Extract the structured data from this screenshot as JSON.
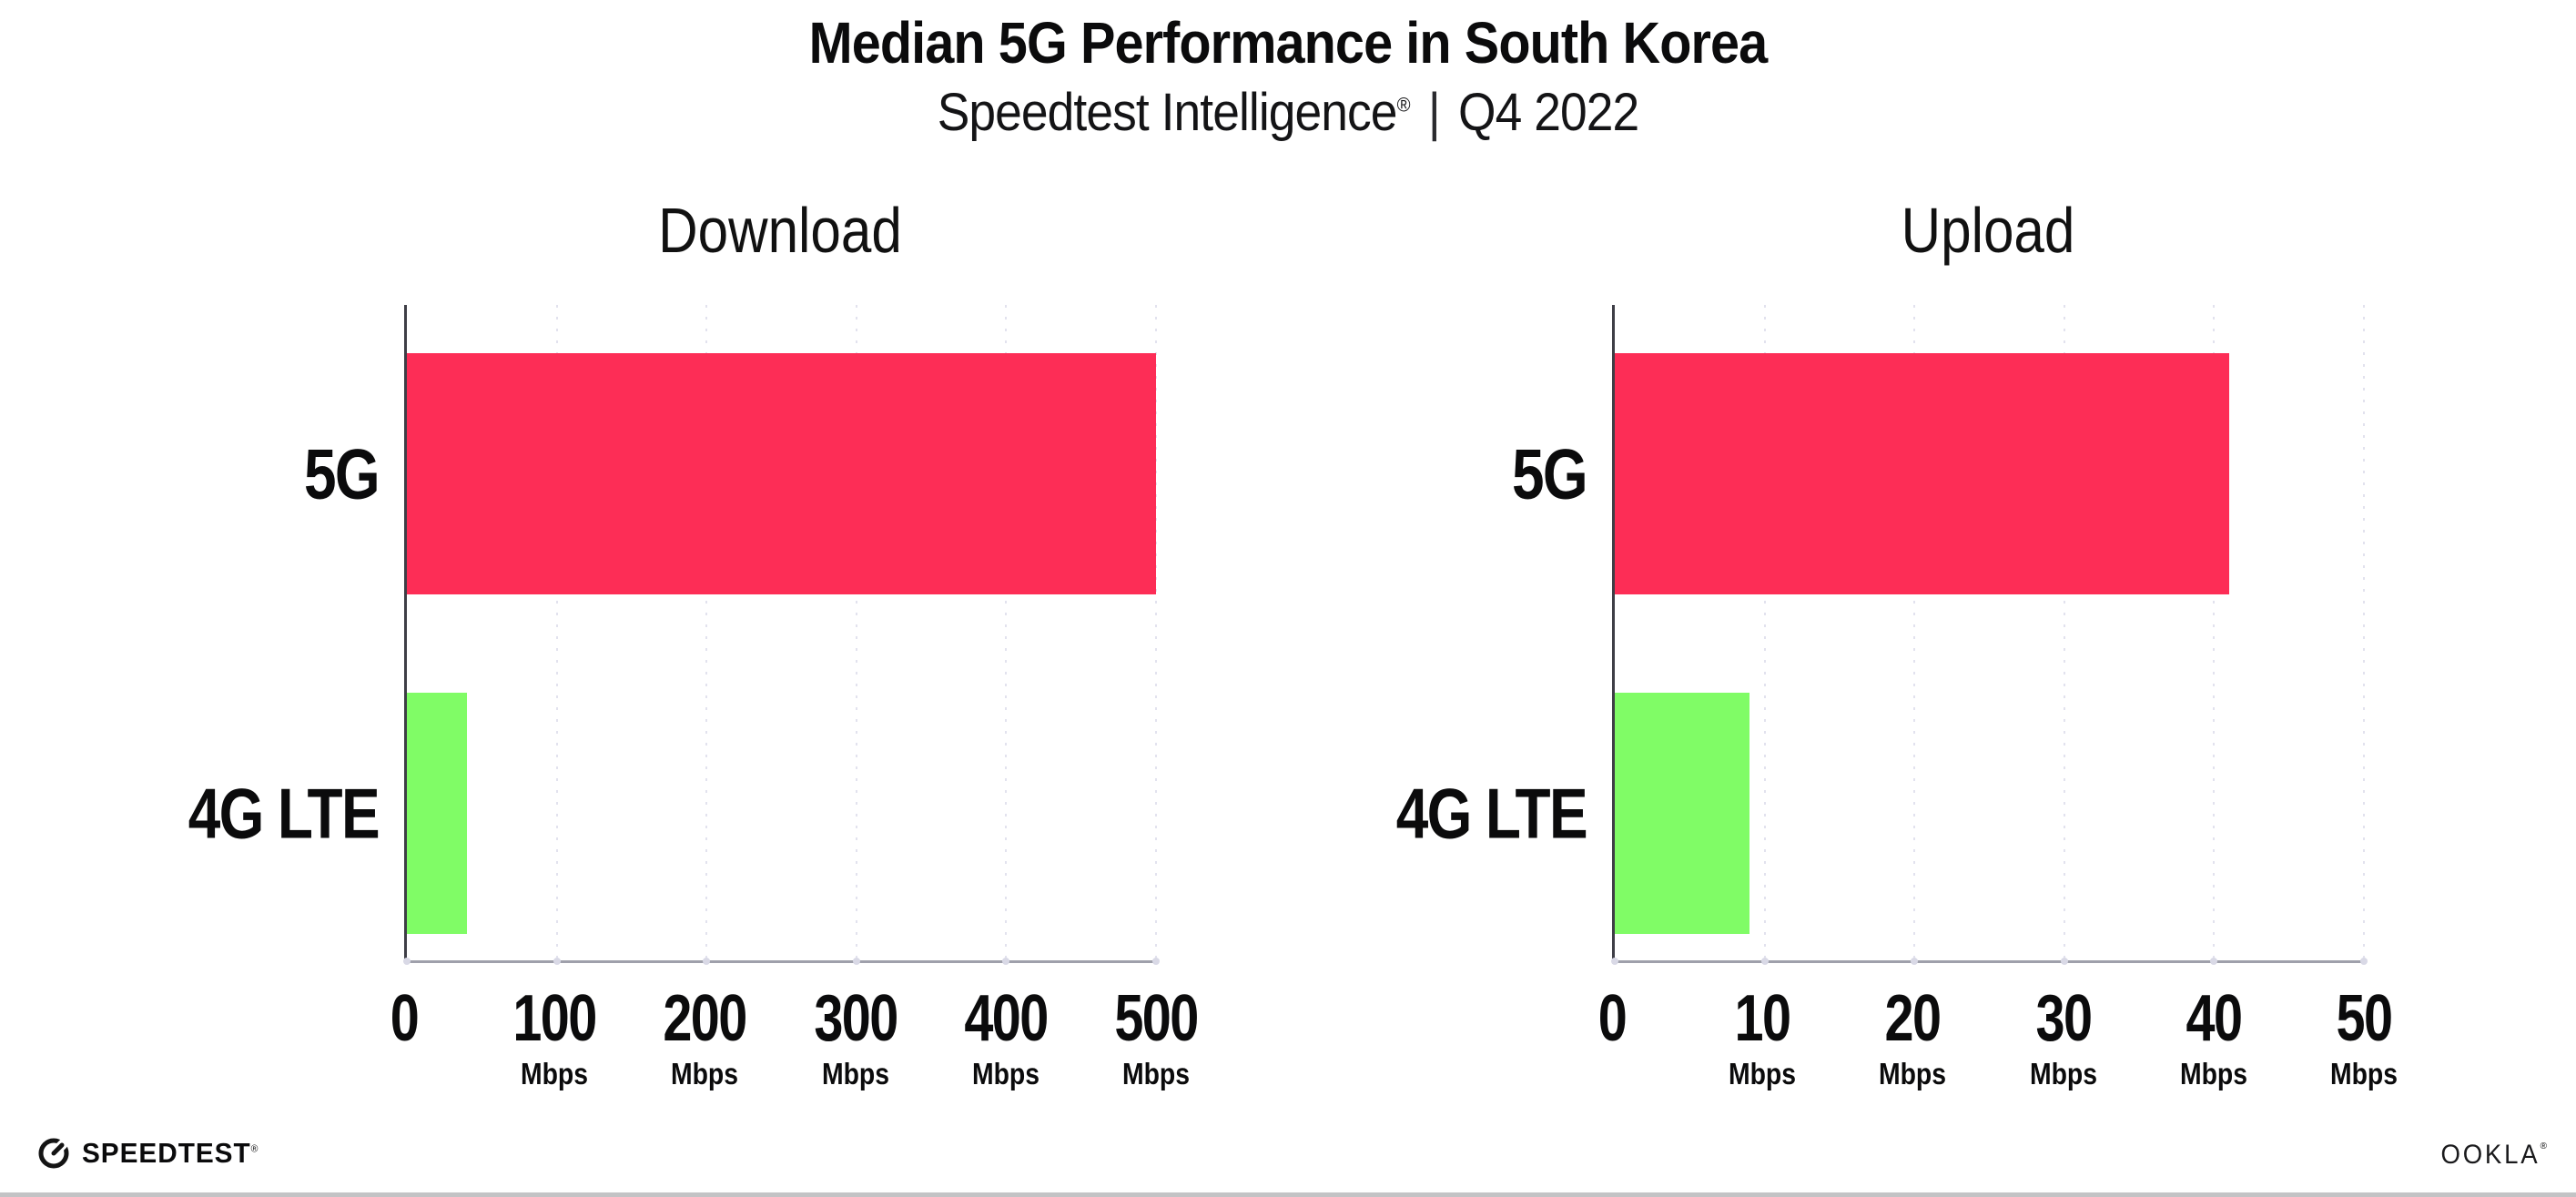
{
  "header": {
    "title": "Median 5G Performance in South Korea",
    "subtitle_brand": "Speedtest Intelligence",
    "subtitle_reg": "®",
    "subtitle_separator": "|",
    "subtitle_period": "Q4 2022"
  },
  "colors": {
    "bar_5g": "#FD2D56",
    "bar_4g_lte": "#80FC66",
    "gridline": "#E2E2EE",
    "axis_vertical": "#3E3E46",
    "axis_horizontal": "#9FA0AB",
    "text": "#0B0B0C"
  },
  "chart_data": [
    {
      "type": "bar",
      "orientation": "horizontal",
      "title": "Download",
      "categories": [
        "5G",
        "4G LTE"
      ],
      "values": [
        500,
        40
      ],
      "unit": "Mbps",
      "xlim": [
        0,
        500
      ],
      "ticks": [
        0,
        100,
        200,
        300,
        400,
        500
      ],
      "tick_unit": "Mbps",
      "bar_colors": [
        "#FD2D56",
        "#80FC66"
      ],
      "grid": "dotted-vertical",
      "legend": "none"
    },
    {
      "type": "bar",
      "orientation": "horizontal",
      "title": "Upload",
      "categories": [
        "5G",
        "4G LTE"
      ],
      "values": [
        41,
        9
      ],
      "unit": "Mbps",
      "xlim": [
        0,
        50
      ],
      "ticks": [
        0,
        10,
        20,
        30,
        40,
        50
      ],
      "tick_unit": "Mbps",
      "bar_colors": [
        "#FD2D56",
        "#80FC66"
      ],
      "grid": "dotted-vertical",
      "legend": "none"
    }
  ],
  "footer": {
    "speedtest_label": "SPEEDTEST",
    "speedtest_reg": "®",
    "ookla_label": "OOKLA",
    "ookla_reg": "®"
  }
}
